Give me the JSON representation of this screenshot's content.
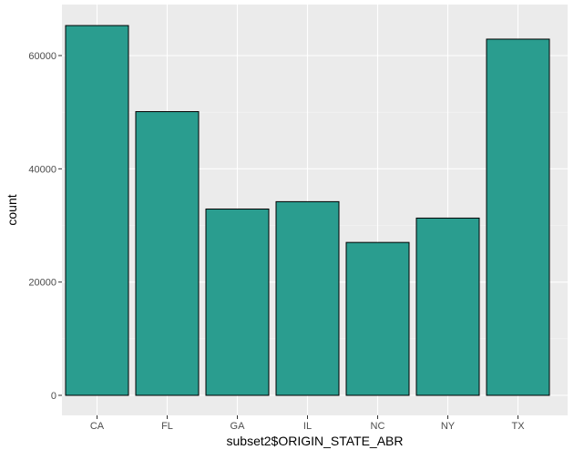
{
  "colors": {
    "bar_fill": "#2a9d8f",
    "bar_stroke": "#000000",
    "panel_background": "#ebebeb",
    "grid_major": "#ffffff",
    "grid_minor": "#f5f5f5",
    "tick_text": "#4d4d4d"
  },
  "chart_data": {
    "type": "bar",
    "title": "",
    "xlabel": "subset2$ORIGIN_STATE_ABR",
    "ylabel": "count",
    "categories": [
      "CA",
      "FL",
      "GA",
      "IL",
      "NC",
      "NY",
      "TX"
    ],
    "values": [
      65300,
      50100,
      32900,
      34200,
      27000,
      31300,
      62900
    ],
    "ylim": [
      0,
      69000
    ],
    "yticks": [
      0,
      20000,
      40000,
      60000
    ],
    "ytick_labels": [
      "0",
      "20000",
      "40000",
      "60000"
    ],
    "grid": true,
    "legend": "none"
  }
}
